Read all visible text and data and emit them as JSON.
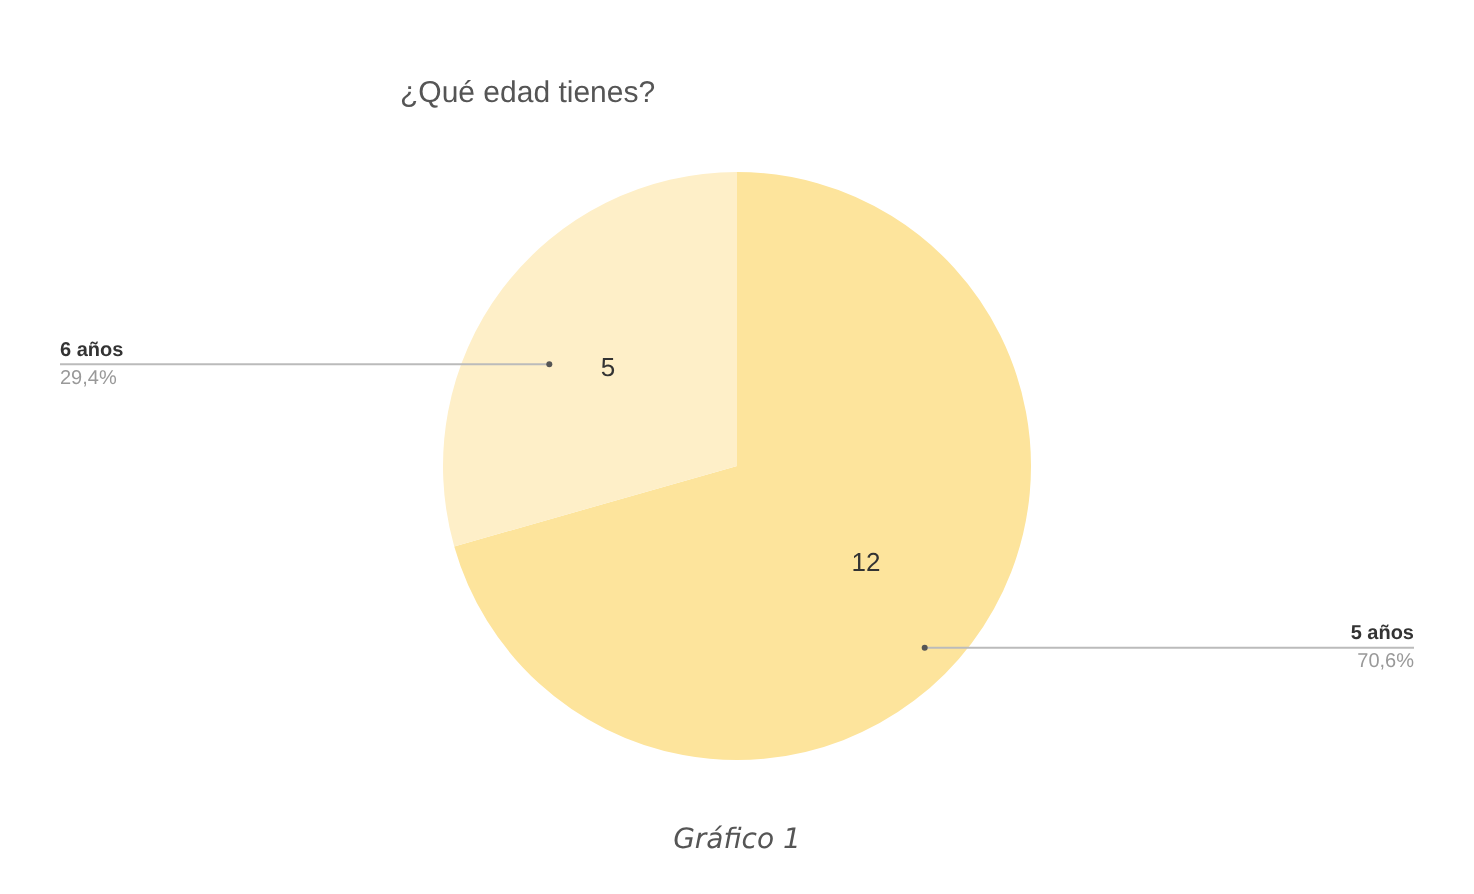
{
  "chart_data": {
    "type": "pie",
    "title": "¿Qué edad tienes?",
    "categories": [
      "5 años",
      "6 años"
    ],
    "values": [
      12,
      5
    ],
    "colors": [
      "#fde49c",
      "#feefc8"
    ],
    "data_labels": true,
    "legend": false,
    "annotations": [
      {
        "text": "70,6%",
        "x": "5 años"
      },
      {
        "text": "29,4%",
        "x": "6 años"
      },
      "Gráfico 1"
    ]
  }
}
